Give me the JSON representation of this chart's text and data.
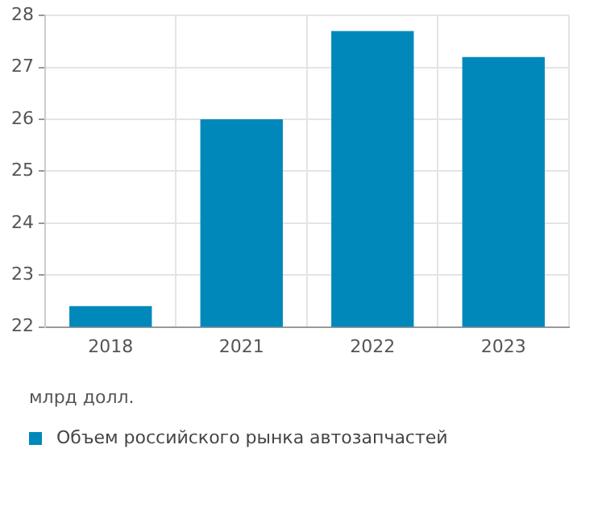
{
  "chart_data": {
    "type": "bar",
    "categories": [
      "2018",
      "2021",
      "2022",
      "2023"
    ],
    "series": [
      {
        "name": "Объем российского рынка автозапчастей",
        "color": "#0088bb",
        "values": [
          22.4,
          26.0,
          27.7,
          27.2
        ]
      }
    ],
    "ylim": [
      22,
      28
    ],
    "yticks": [
      22,
      23,
      24,
      25,
      26,
      27,
      28
    ],
    "grid": true,
    "legend": "bottom",
    "annotations": [
      "млрд долл."
    ]
  }
}
